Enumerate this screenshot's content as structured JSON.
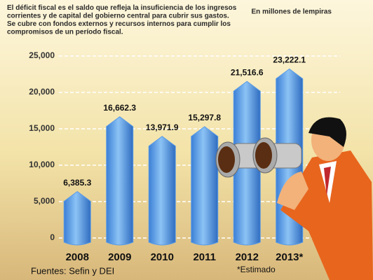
{
  "chart_data": {
    "type": "bar",
    "description": [
      "El déficit fiscal es el saldo que refleja la insuficiencia de los ingresos",
      "corrientes y de capital del gobierno central para cubrir sus gastos.",
      "Se cubre con fondos externos y recursos internos para cumplir los",
      "compromisos de un período fiscal."
    ],
    "unit": "En millones de lempiras",
    "categories": [
      "2008",
      "2009",
      "2010",
      "2011",
      "2012",
      "2013*"
    ],
    "values": [
      6385.3,
      16662.3,
      13971.9,
      15297.8,
      21516.6,
      23222.1
    ],
    "value_labels": [
      "6,385.3",
      "16,662.3",
      "13,971.9",
      "15,297.8",
      "21,516.6",
      "23,222.1"
    ],
    "color": "#5a9be6",
    "ylim": [
      0,
      25000
    ],
    "yticks": [
      0,
      {
        "value": 5000,
        "label": "5,000"
      },
      {
        "value": 10000,
        "label": "10,000"
      },
      {
        "value": 15000,
        "label": "15,000"
      },
      {
        "value": 20000,
        "label": "20,000"
      },
      {
        "value": 25000,
        "label": "25,000"
      }
    ],
    "grid": true,
    "source": "Fuentes: Sefin y DEI",
    "footnote": "*Estimado"
  }
}
